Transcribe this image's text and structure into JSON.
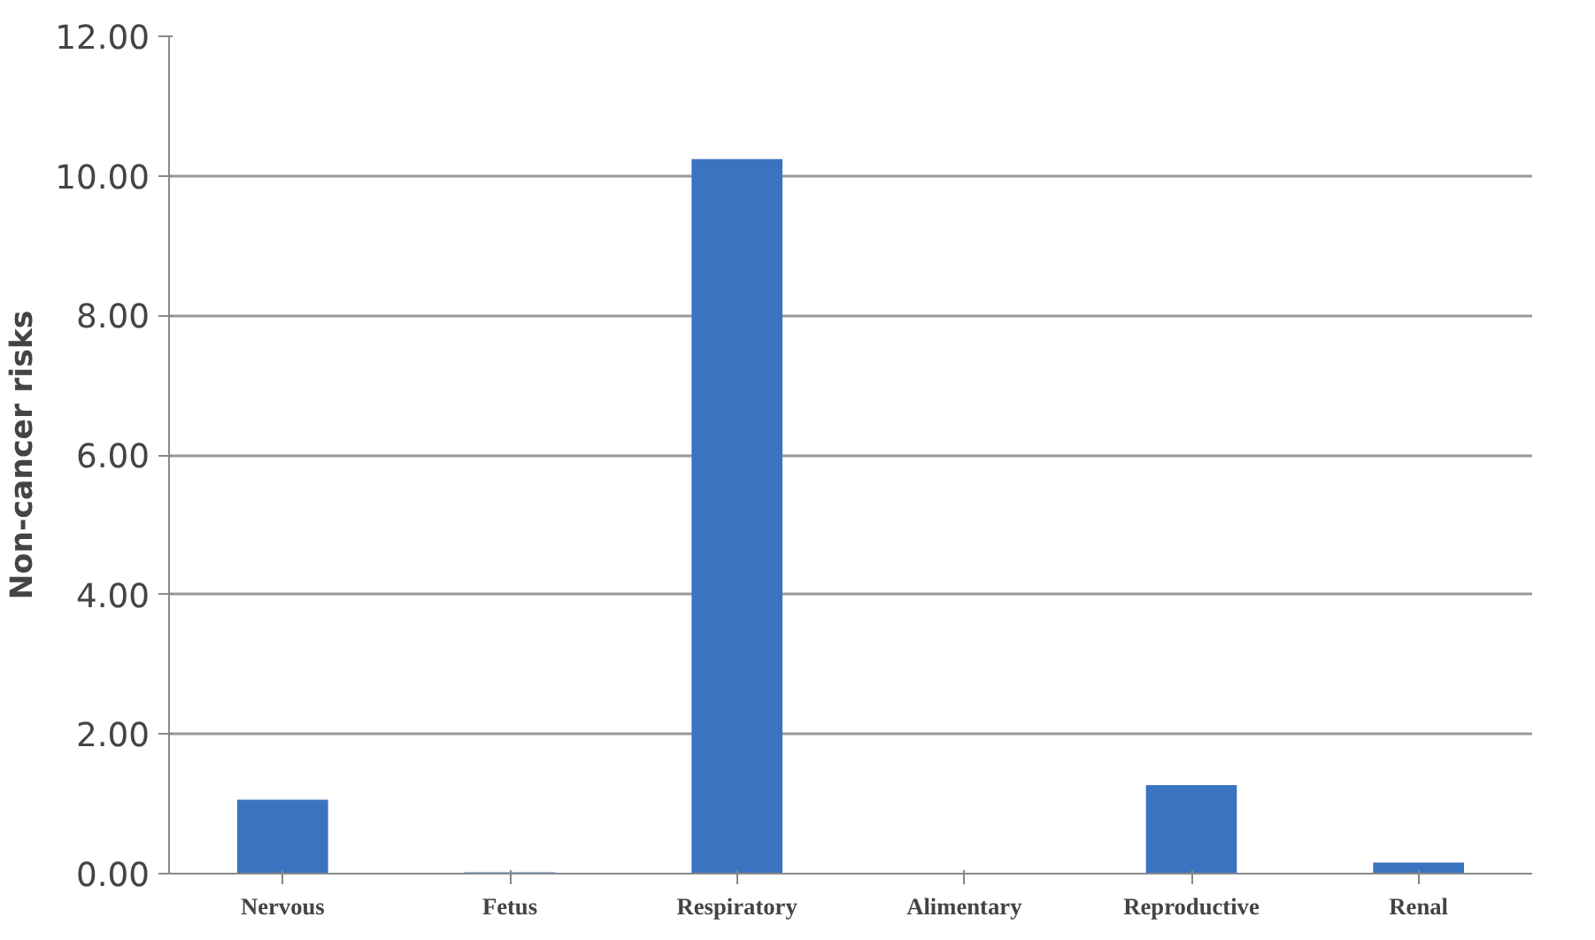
{
  "chart_data": {
    "type": "bar",
    "ylabel": "Non-cancer risks",
    "categories": [
      "Nervous",
      "Fetus",
      "Respiratory",
      "Alimentary",
      "Reproductive",
      "Renal"
    ],
    "values": [
      1.06,
      0.02,
      10.24,
      0,
      1.27,
      0.16
    ],
    "color": "#3a74c0",
    "ylim": [
      0,
      12
    ],
    "yticks": [
      {
        "value": 0,
        "label": "0.00"
      },
      {
        "value": 2,
        "label": "2.00"
      },
      {
        "value": 4,
        "label": "4.00"
      },
      {
        "value": 6,
        "label": "6.00"
      },
      {
        "value": 8,
        "label": "8.00"
      },
      {
        "value": 10,
        "label": "10.00"
      },
      {
        "value": 12,
        "label": "12.00"
      }
    ],
    "grid": "y"
  }
}
